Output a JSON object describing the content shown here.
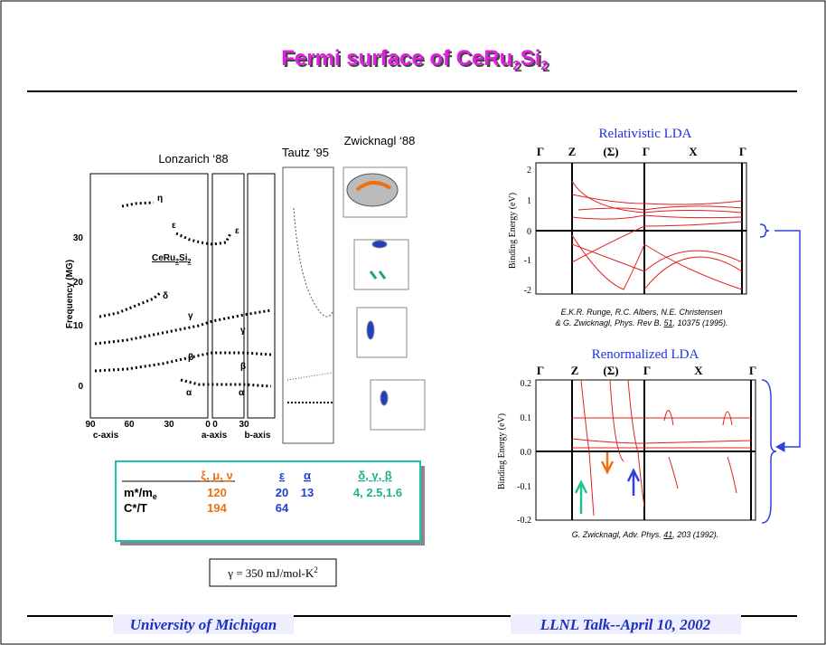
{
  "title": {
    "main": "Fermi surface of CeRu",
    "sub1": "2",
    "mid": "Si",
    "sub2": "2"
  },
  "lonzarich": {
    "label": "Lonzarich ‘88",
    "y_axis": "Frequency (MG)",
    "compound": "CeRu",
    "compound_sub1": "2",
    "compound_mid": "Si",
    "compound_sub2": "2",
    "yticks": [
      "30",
      "20",
      "10",
      "0"
    ],
    "xticks": [
      "90",
      "60",
      "30",
      "0",
      "0",
      "30"
    ],
    "axes": [
      "c-axis",
      "a-axis",
      "b-axis"
    ],
    "orbits": [
      "η",
      "ε",
      "δ",
      "γ",
      "β",
      "α",
      "ε",
      "γ",
      "β",
      "α"
    ]
  },
  "tautz": {
    "label": "Tautz ’95"
  },
  "zwicknagl": {
    "label": "Zwicknagl ‘88"
  },
  "plots": [
    {
      "title": "Relativistic LDA",
      "points": [
        "Γ",
        "Z",
        "(Σ)",
        "Γ",
        "X",
        "Γ"
      ],
      "yticks": [
        "2",
        "1",
        "0",
        "-1",
        "-2"
      ],
      "y_axis": "Binding Energy (eV)",
      "citation_line1": "E.K.R. Runge, R.C. Albers, N.E. Christensen",
      "citation_a": "& G. Zwicknagl, Phys. Rev B. ",
      "citation_vol": "51",
      "citation_b": ", 10375 (1995)."
    },
    {
      "title": "Renormalized LDA",
      "points": [
        "Γ",
        "Z",
        "(Σ)",
        "Γ",
        "X",
        "Γ"
      ],
      "yticks": [
        "0.2",
        "0.1",
        "0.0",
        "-0.1",
        "-0.2"
      ],
      "y_axis": "Binding Energy (eV)",
      "citation_a": "G. Zwicknagl, Adv. Phys. ",
      "citation_vol": "41",
      "citation_b": ", 203 (1992)."
    }
  ],
  "table": {
    "header": [
      "ξ, μ, ν",
      "ε",
      "α",
      "δ, γ, β"
    ],
    "row1": {
      "label": "m*/m",
      "label_sub": "e",
      "cells": [
        "120",
        "20",
        "13",
        "4, 2.5,1.6"
      ]
    },
    "row2": {
      "label": "C*/T",
      "cells": [
        "194",
        "64"
      ]
    }
  },
  "gamma": {
    "text": "γ = 350 mJ/mol-K",
    "sup": "2"
  },
  "footer": {
    "left": "University of Michigan",
    "right": "LLNL Talk--April 10, 2002"
  }
}
